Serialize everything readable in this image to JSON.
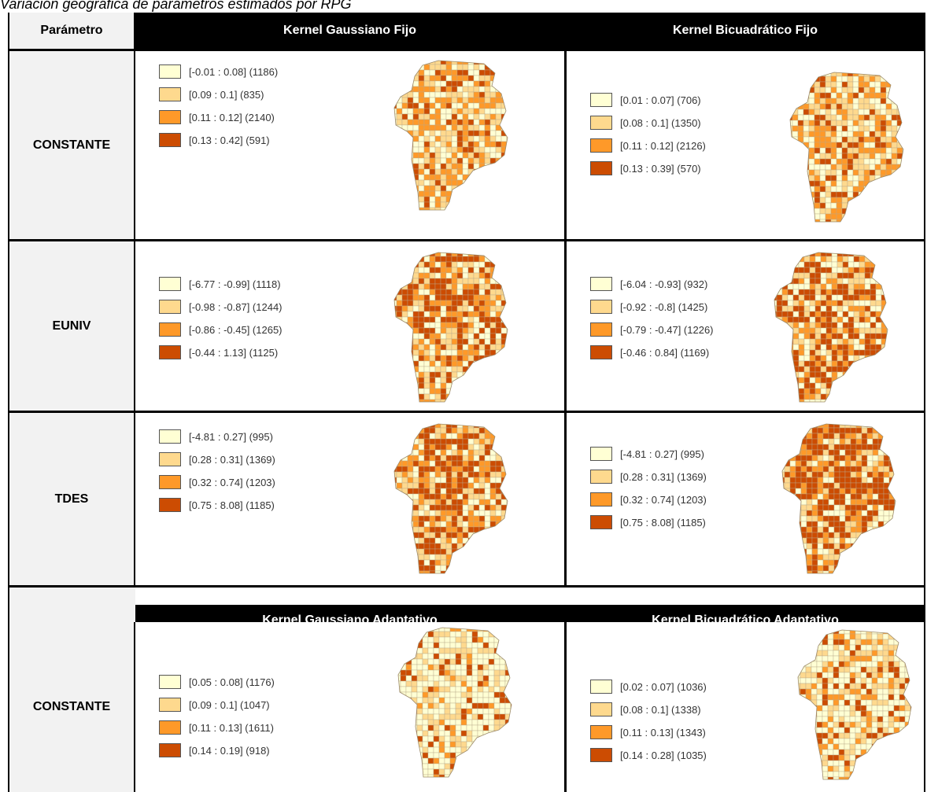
{
  "caption": "Variación geográfica de parámetros estimados por RPG",
  "header": {
    "param_label": "Parámetro",
    "col1": "Kernel Gaussiano Fijo",
    "col2": "Kernel Bicuadrático Fijo",
    "col1_b": "Kernel Gaussiano Adaptativo",
    "col2_b": "Kernel Bicuadrático Adaptativo"
  },
  "colors": {
    "c1": "#ffffd4",
    "c2": "#fed98e",
    "c3": "#fe9929",
    "c4": "#cc4c02"
  },
  "rows": [
    {
      "name": "CONSTANTE",
      "left": [
        "[-0.01 : 0.08] (1186)",
        "[0.09 : 0.1] (835)",
        "[0.11 : 0.12] (2140)",
        "[0.13 : 0.42] (591)"
      ],
      "right": [
        "[0.01 : 0.07] (706)",
        "[0.08 : 0.1] (1350)",
        "[0.11 : 0.12] (2126)",
        "[0.13 : 0.39] (570)"
      ]
    },
    {
      "name": "EUNIV",
      "left": [
        "[-6.77 : -0.99] (1118)",
        "[-0.98 : -0.87] (1244)",
        "[-0.86 : -0.45] (1265)",
        "[-0.44 : 1.13] (1125)"
      ],
      "right": [
        "[-6.04 : -0.93] (932)",
        "[-0.92 : -0.8] (1425)",
        "[-0.79 : -0.47] (1226)",
        "[-0.46 : 0.84] (1169)"
      ]
    },
    {
      "name": "TDES",
      "left": [
        "[-4.81 : 0.27] (995)",
        "[0.28 : 0.31] (1369)",
        "[0.32 : 0.74] (1203)",
        "[0.75 : 8.08] (1185)"
      ],
      "right": [
        "[-4.81 : 0.27] (995)",
        "[0.28 : 0.31] (1369)",
        "[0.32 : 0.74] (1203)",
        "[0.75 : 8.08] (1185)"
      ]
    },
    {
      "name": "CONSTANTE",
      "left": [
        "[0.05 : 0.08] (1176)",
        "[0.09 : 0.1] (1047)",
        "[0.11 : 0.13] (1611)",
        "[0.14 : 0.19] (918)"
      ],
      "right": [
        "[0.02 : 0.07] (1036)",
        "[0.08 : 0.1] (1338)",
        "[0.11 : 0.13] (1343)",
        "[0.14 : 0.28] (1035)"
      ]
    }
  ]
}
